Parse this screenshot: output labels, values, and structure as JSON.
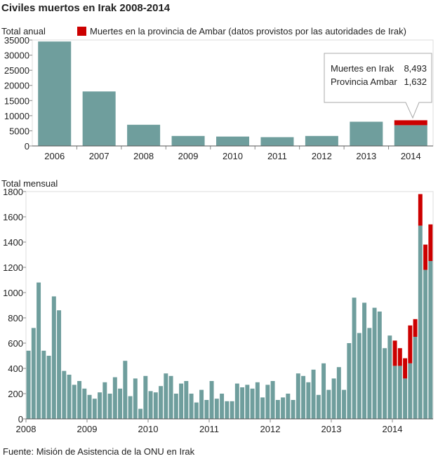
{
  "title": "Civiles muertos en Irak 2008-2014",
  "annual_label": "Total anual",
  "monthly_label": "Total mensual",
  "legend_label": "Muertes en la provincia de Ambar (datos provistos por las autoridades de Irak)",
  "source": "Fuente: Misión de Asistencia de la ONU en Irak",
  "colors": {
    "total": "#6f9e9d",
    "ambar": "#cc0000",
    "axis": "#888888",
    "grid": "#dddddd"
  },
  "tooltip": {
    "row1_label": "Muertes en Irak",
    "row1_value": "8,493",
    "row2_label": "Provincia Ambar",
    "row2_value": "1,632"
  },
  "chart_data": [
    {
      "type": "bar",
      "title": "Total anual",
      "categories": [
        "2006",
        "2007",
        "2008",
        "2009",
        "2010",
        "2011",
        "2012",
        "2013",
        "2014"
      ],
      "series": [
        {
          "name": "Total",
          "values": [
            34500,
            18000,
            7000,
            3300,
            3100,
            2900,
            3300,
            8000,
            6861
          ]
        },
        {
          "name": "Muertes en la provincia de Ambar (datos provistos por las autoridades de Irak)",
          "values": [
            0,
            0,
            0,
            0,
            0,
            0,
            0,
            0,
            1632
          ]
        }
      ],
      "yticks": [
        0,
        5000,
        10000,
        15000,
        20000,
        25000,
        30000,
        35000
      ],
      "ylim": [
        0,
        35000
      ]
    },
    {
      "type": "bar",
      "title": "Total mensual",
      "xticks": [
        "2008",
        "2009",
        "2010",
        "2011",
        "2012",
        "2013",
        "2014"
      ],
      "months_start": "2008-01",
      "series": [
        {
          "name": "Total",
          "values": [
            540,
            720,
            1080,
            540,
            500,
            970,
            860,
            380,
            350,
            270,
            300,
            240,
            190,
            160,
            210,
            290,
            200,
            330,
            240,
            460,
            180,
            320,
            80,
            340,
            220,
            210,
            260,
            360,
            340,
            200,
            280,
            300,
            200,
            130,
            230,
            150,
            300,
            160,
            200,
            140,
            140,
            280,
            250,
            270,
            240,
            290,
            170,
            270,
            300,
            150,
            170,
            200,
            150,
            360,
            340,
            290,
            390,
            190,
            440,
            230,
            320,
            410,
            230,
            600,
            960,
            680,
            920,
            720,
            880,
            850,
            560,
            660,
            420,
            420,
            320,
            440,
            650,
            1530,
            1180,
            1250
          ]
        },
        {
          "name": "Muertes en la provincia de Ambar (datos provistos por las autoridades de Irak)",
          "values": [
            0,
            0,
            0,
            0,
            0,
            0,
            0,
            0,
            0,
            0,
            0,
            0,
            0,
            0,
            0,
            0,
            0,
            0,
            0,
            0,
            0,
            0,
            0,
            0,
            0,
            0,
            0,
            0,
            0,
            0,
            0,
            0,
            0,
            0,
            0,
            0,
            0,
            0,
            0,
            0,
            0,
            0,
            0,
            0,
            0,
            0,
            0,
            0,
            0,
            0,
            0,
            0,
            0,
            0,
            0,
            0,
            0,
            0,
            0,
            0,
            0,
            0,
            0,
            0,
            0,
            0,
            0,
            0,
            0,
            0,
            0,
            0,
            200,
            140,
            160,
            300,
            140,
            250,
            200,
            290
          ]
        }
      ],
      "yticks": [
        0,
        200,
        400,
        600,
        800,
        1000,
        1200,
        1400,
        1600,
        1800
      ],
      "ylim": [
        0,
        1800
      ]
    }
  ]
}
